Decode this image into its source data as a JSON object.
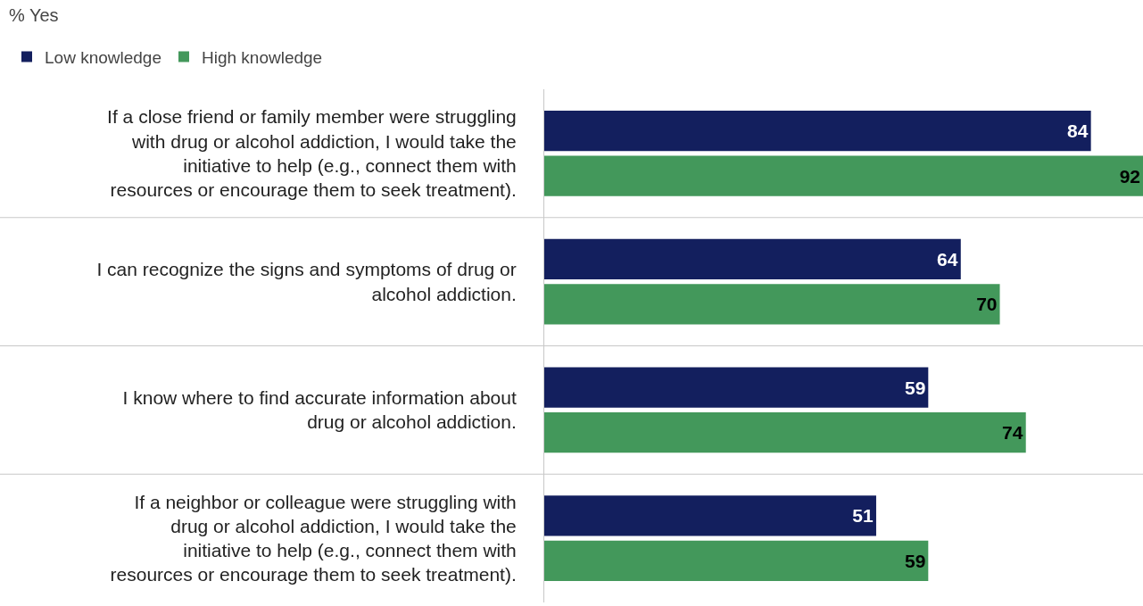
{
  "chart_data": {
    "type": "bar",
    "orientation": "horizontal",
    "title": "% Yes",
    "categories": [
      "If a close friend or family member were struggling with drug or alcohol addiction, I would take the initiative to help (e.g., connect them with resources or encourage them to seek treatment).",
      "I can recognize the signs and symptoms of drug or alcohol addiction.",
      "I know where to find accurate information about drug or alcohol addiction.",
      "If a neighbor or colleague were struggling with drug or alcohol addiction, I would take the initiative to help (e.g., connect them with resources or encourage them to seek treatment)."
    ],
    "series": [
      {
        "name": "Low knowledge",
        "color": "#131f5e",
        "values": [
          84,
          64,
          59,
          51
        ]
      },
      {
        "name": "High knowledge",
        "color": "#43985b",
        "values": [
          92,
          70,
          74,
          59
        ]
      }
    ],
    "xlim": [
      0,
      92
    ],
    "data_labels": true,
    "legend": "top left",
    "tick_labels": "y"
  }
}
